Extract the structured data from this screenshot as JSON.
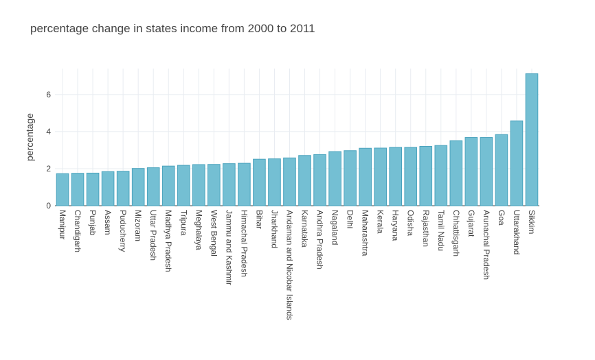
{
  "chart_data": {
    "type": "bar",
    "title": "percentage change in states income from 2000 to 2011",
    "xlabel": "",
    "ylabel": "percentage",
    "ylim": [
      0,
      7.4
    ],
    "yticks": [
      0,
      2,
      4,
      6
    ],
    "grid": true,
    "bar_color": "#74bfd3",
    "bar_edge_color": "#4aa3bd",
    "categories": [
      "Manipur",
      "Chandigarh",
      "Punjab",
      "Assam",
      "Puducherry",
      "Mizoram",
      "Uttar Pradesh",
      "Madhya Pradesh",
      "Tripura",
      "Meghalaya",
      "West Bengal",
      "Jammu and Kashmir",
      "Himachal Pradesh",
      "Bihar",
      "Jharkhand",
      "Andaman and Nicobar Islands",
      "Karnataka",
      "Andhra Pradesh",
      "Nagaland",
      "Delhi",
      "Maharashtra",
      "Kerala",
      "Haryana",
      "Odisha",
      "Rajasthan",
      "Tamil Nadu",
      "Chhattisgarh",
      "Gujarat",
      "Arunachal Pradesh",
      "Goa",
      "Uttarakhand",
      "Sikkim"
    ],
    "values": [
      1.73,
      1.75,
      1.76,
      1.84,
      1.86,
      2.01,
      2.05,
      2.14,
      2.18,
      2.22,
      2.23,
      2.27,
      2.29,
      2.51,
      2.53,
      2.58,
      2.71,
      2.76,
      2.92,
      2.97,
      3.1,
      3.11,
      3.15,
      3.15,
      3.2,
      3.25,
      3.51,
      3.68,
      3.68,
      3.84,
      4.58,
      7.12
    ]
  }
}
